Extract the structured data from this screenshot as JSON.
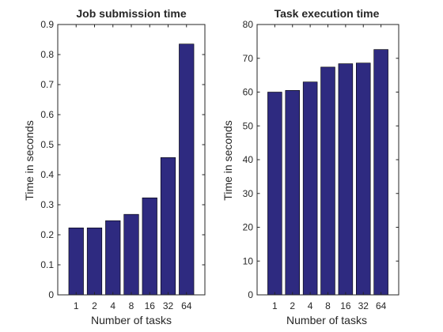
{
  "chart_data": [
    {
      "type": "bar",
      "title": "Job submission time",
      "xlabel": "Number of tasks",
      "ylabel": "Time in seconds",
      "categories": [
        "1",
        "2",
        "4",
        "8",
        "16",
        "32",
        "64"
      ],
      "values": [
        0.223,
        0.223,
        0.247,
        0.268,
        0.323,
        0.457,
        0.835
      ],
      "ylim": [
        0,
        0.9
      ],
      "yticks": [
        "0",
        "0.1",
        "0.2",
        "0.3",
        "0.4",
        "0.5",
        "0.6",
        "0.7",
        "0.8",
        "0.9"
      ],
      "bar_color": "#2e2a80",
      "grid": false
    },
    {
      "type": "bar",
      "title": "Task execution time",
      "xlabel": "Number of tasks",
      "ylabel": "Time in seconds",
      "categories": [
        "1",
        "2",
        "4",
        "8",
        "16",
        "32",
        "64"
      ],
      "values": [
        60.0,
        60.5,
        63.0,
        67.4,
        68.4,
        68.6,
        72.6
      ],
      "ylim": [
        0,
        80
      ],
      "yticks": [
        "0",
        "10",
        "20",
        "30",
        "40",
        "50",
        "60",
        "70",
        "80"
      ],
      "bar_color": "#2e2a80",
      "grid": false
    }
  ]
}
